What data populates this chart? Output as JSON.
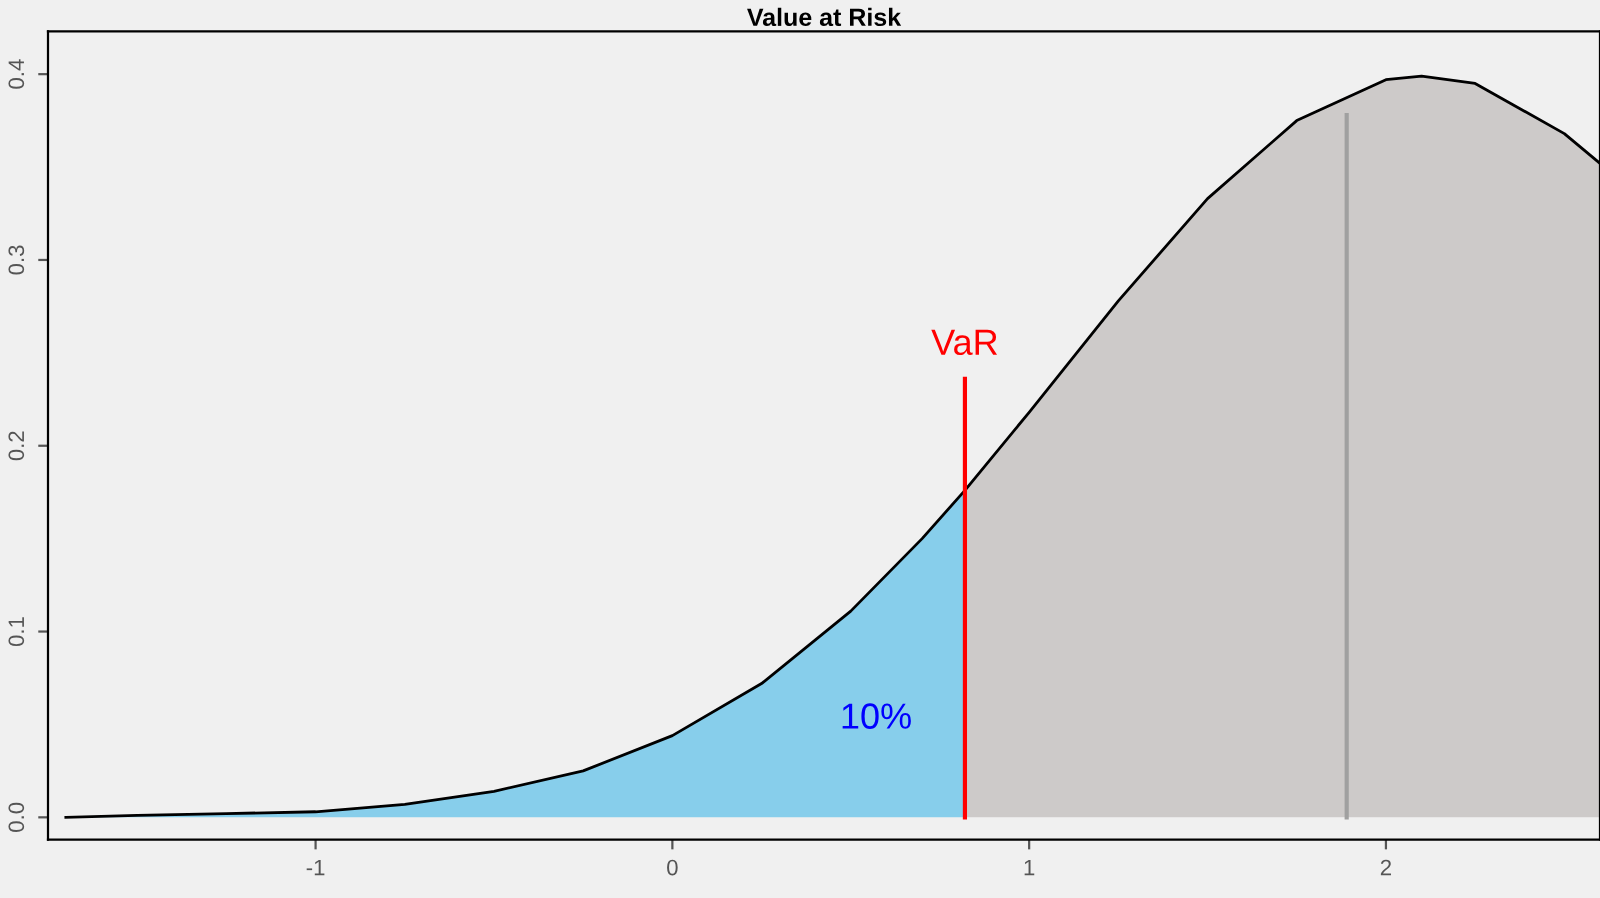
{
  "chart_data": {
    "type": "area",
    "title": "Value at Risk",
    "series": [
      {
        "color": "#87ceeb",
        "x": [
          -1.7,
          -1.5,
          -1.25,
          -1.0,
          -0.75,
          -0.5,
          -0.25,
          0,
          0.25,
          0.5,
          0.7,
          0.82
        ],
        "values": [
          0,
          0.001,
          0.002,
          0.003,
          0.007,
          0.014,
          0.025,
          0.044,
          0.072,
          0.111,
          0.15,
          0.176
        ]
      },
      {
        "color": "#cdcac9",
        "x": [
          0.82,
          1.0,
          1.25,
          1.5,
          1.75,
          2.0,
          2.1,
          2.25,
          2.5,
          2.6
        ],
        "values": [
          0.176,
          0.218,
          0.278,
          0.333,
          0.375,
          0.397,
          0.399,
          0.395,
          0.368,
          0.352
        ]
      },
      {
        "type": "line",
        "color": "#000000",
        "x": [
          -1.7,
          -1.5,
          -1.25,
          -1.0,
          -0.75,
          -0.5,
          -0.25,
          0,
          0.25,
          0.5,
          0.7,
          0.82,
          1.0,
          1.25,
          1.5,
          1.75,
          2.0,
          2.1,
          2.25,
          2.5,
          2.6
        ],
        "values": [
          0,
          0.001,
          0.002,
          0.003,
          0.007,
          0.014,
          0.025,
          0.044,
          0.072,
          0.111,
          0.15,
          0.176,
          0.218,
          0.278,
          0.333,
          0.375,
          0.397,
          0.399,
          0.395,
          0.368,
          0.352
        ]
      },
      {
        "type": "line",
        "color": "#a0a0a0",
        "x": [
          1.89,
          1.89
        ],
        "values": [
          0,
          0.378
        ]
      },
      {
        "type": "line",
        "color": "#ff0000",
        "x": [
          0.82,
          0.82
        ],
        "values": [
          0,
          0.236
        ]
      }
    ],
    "annotations": [
      "VaR",
      "10%"
    ],
    "xlim": [
      -1.75,
      2.6
    ],
    "ylim": [
      -0.012,
      0.423
    ],
    "xticks": [
      -1,
      0,
      1,
      2
    ],
    "yticks": [
      {
        "value": 0,
        "label": "0.0"
      },
      {
        "value": 0.1,
        "label": "0.1"
      },
      {
        "value": 0.2,
        "label": "0.2"
      },
      {
        "value": 0.3,
        "label": "0.3"
      },
      {
        "value": 0.4,
        "label": "0.4"
      }
    ],
    "grid": false,
    "legend": false
  }
}
